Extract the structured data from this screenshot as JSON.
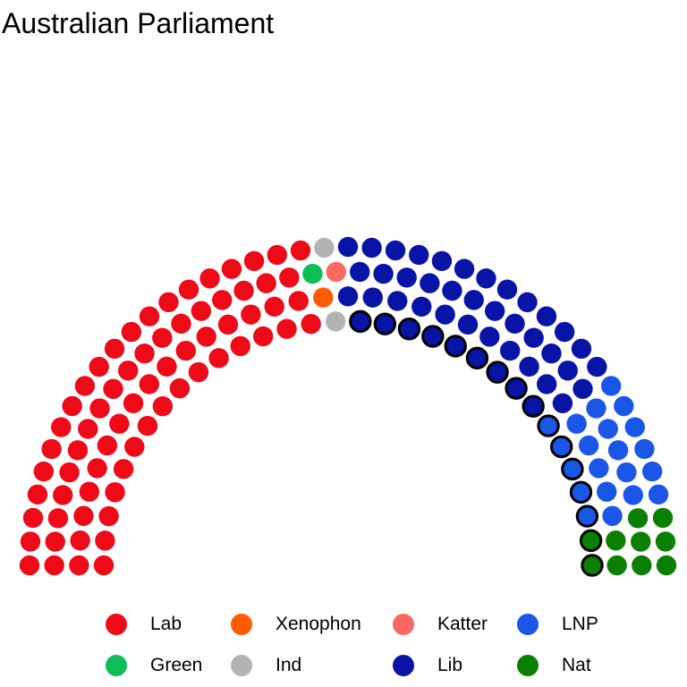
{
  "chart_data": {
    "type": "parliament",
    "title": "Australian Parliament",
    "total_seats": 150,
    "parties": [
      {
        "name": "Lab",
        "seats": 69,
        "color": "#EE0A17"
      },
      {
        "name": "Green",
        "seats": 1,
        "color": "#0DBE55"
      },
      {
        "name": "Xenophon",
        "seats": 1,
        "color": "#FF5B00"
      },
      {
        "name": "Ind",
        "seats": 2,
        "color": "#B3B3B3"
      },
      {
        "name": "Katter",
        "seats": 1,
        "color": "#F86A61"
      },
      {
        "name": "Lib",
        "seats": 45,
        "color": "#0814A6"
      },
      {
        "name": "LNP",
        "seats": 21,
        "color": "#1A57E8"
      },
      {
        "name": "Nat",
        "seats": 10,
        "color": "#0A8000"
      }
    ],
    "government_highlighted_seats": 16,
    "legend": {
      "position": "bottom",
      "rows": [
        [
          "Lab",
          "Xenophon",
          "Katter",
          "LNP"
        ],
        [
          "Green",
          "Ind",
          "Lib",
          "Nat"
        ]
      ]
    }
  }
}
